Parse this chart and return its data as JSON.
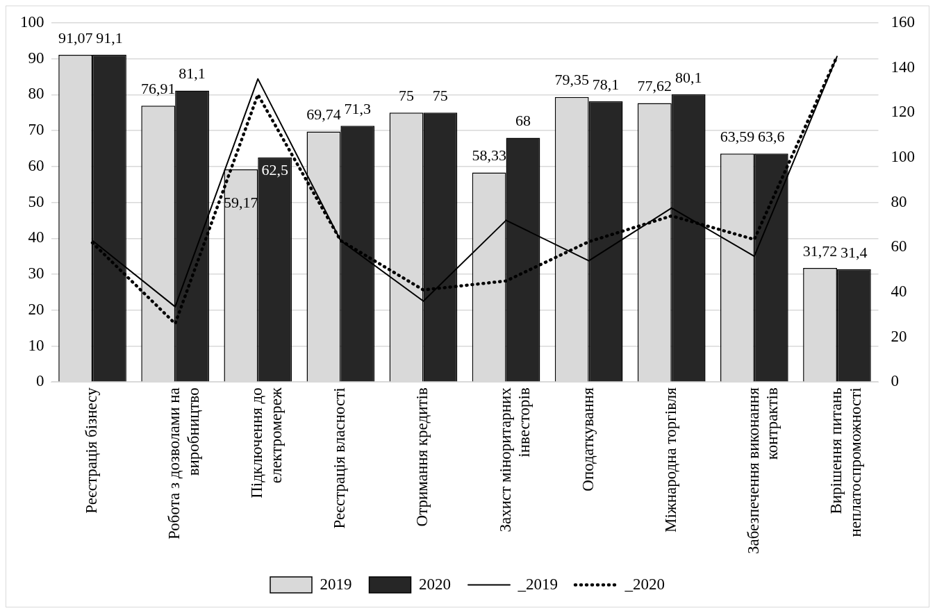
{
  "chart_data": {
    "type": "bar",
    "categories": [
      "Реєстрація бізнесу",
      "Робота з дозволами на виробництво",
      "Підключення до електромереж",
      "Реєстрація власності",
      "Отримання кредитів",
      "Захист міноритарних інвесторів",
      "Оподаткування",
      "Міжнародна торгівля",
      "Забезпечення виконання контрактів",
      "Вирішення питань неплатоспроможності"
    ],
    "series": [
      {
        "name": "2019",
        "color": "#d9d9d9",
        "values": [
          91.07,
          76.91,
          59.17,
          69.74,
          75,
          58.33,
          79.35,
          77.62,
          63.59,
          31.72
        ],
        "value_labels": [
          "91,07",
          "76,91",
          "59,17",
          "69,74",
          "75",
          "58,33",
          "79,35",
          "77,62",
          "63,59",
          "31,72"
        ]
      },
      {
        "name": "2020",
        "color": "#262626",
        "values": [
          91.1,
          81.1,
          62.5,
          71.3,
          75,
          68,
          78.1,
          80.1,
          63.6,
          31.4
        ],
        "value_labels": [
          "91,1",
          "81,1",
          "62,5",
          "71,3",
          "75",
          "68",
          "78,1",
          "80,1",
          "63,6",
          "31,4"
        ]
      },
      {
        "name": "_2019",
        "type": "line",
        "axis": "y2",
        "color": "#000000",
        "line_style": "solid",
        "values": [
          63,
          33.5,
          135,
          63,
          36,
          72,
          54,
          77.5,
          56,
          145
        ]
      },
      {
        "name": "_2020",
        "type": "line",
        "axis": "y2",
        "color": "#000000",
        "line_style": "dotted",
        "values": [
          62,
          26,
          128,
          63,
          41,
          45,
          62.5,
          74,
          63.5,
          145
        ]
      }
    ],
    "ylim": [
      0,
      100
    ],
    "yticks": [
      0,
      10,
      20,
      30,
      40,
      50,
      60,
      70,
      80,
      90,
      100
    ],
    "y2lim": [
      0,
      160
    ],
    "y2ticks": [
      0,
      20,
      40,
      60,
      80,
      100,
      120,
      140,
      160
    ],
    "grid": "y",
    "legend": "bottom",
    "marker": "none"
  }
}
